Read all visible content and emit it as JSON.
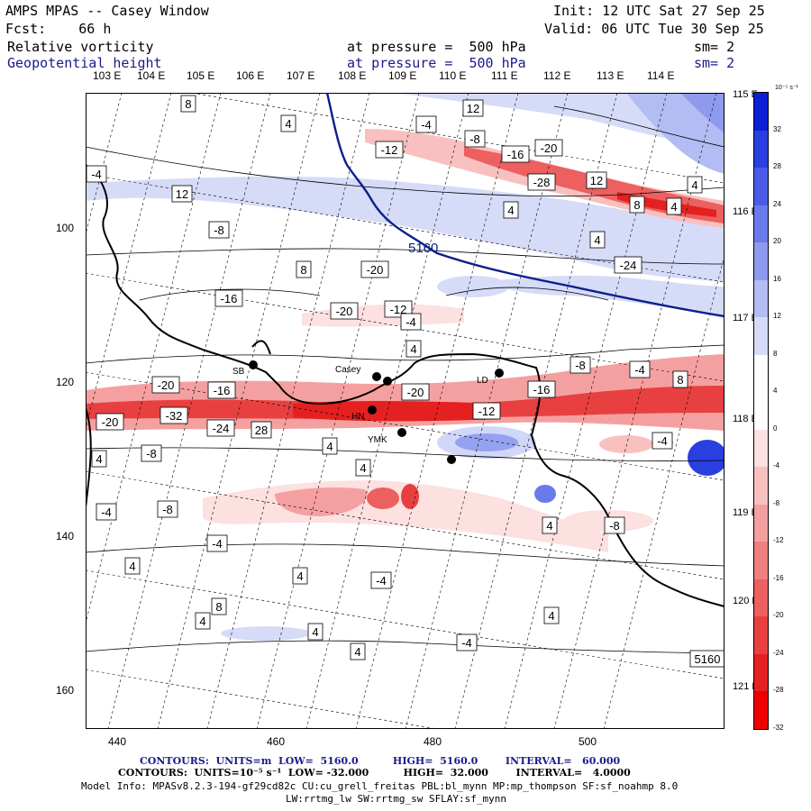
{
  "header": {
    "title": "AMPS MPAS -- Casey Window",
    "forecast": "Fcst:    66 h",
    "init": "Init: 12 UTC Sat 27 Sep 25",
    "valid": "Valid: 06 UTC Tue 30 Sep 25",
    "field1_name": "Relative vorticity",
    "field1_level": "at pressure =  500 hPa",
    "field1_sm": "sm= 2",
    "field2_name": "Geopotential height",
    "field2_level": "at pressure =  500 hPa",
    "field2_sm": "sm= 2"
  },
  "axes": {
    "top_lon": [
      "103 E",
      "104 E",
      "105 E",
      "106 E",
      "107 E",
      "108 E",
      "109 E",
      "110 E",
      "111 E",
      "112 E",
      "113 E",
      "114 E"
    ],
    "right_lon": [
      "115 E",
      "116 E",
      "117 E",
      "118 E",
      "119 E",
      "120 E",
      "121 E"
    ],
    "y_ticks": [
      "100",
      "120",
      "140",
      "160"
    ],
    "x_ticks": [
      "440",
      "460",
      "480",
      "500"
    ]
  },
  "colorbar": {
    "unit_label": "10⁻⁵ s⁻¹",
    "labels": [
      "32",
      "28",
      "24",
      "20",
      "16",
      "12",
      "8",
      "4",
      "0",
      "-4",
      "-8",
      "-12",
      "-16",
      "-20",
      "-24",
      "-28",
      "-32"
    ],
    "colors": [
      "#0a1fd6",
      "#2a3fe0",
      "#4a5ce6",
      "#6b7aea",
      "#8e9aee",
      "#b3bcf3",
      "#d6dbf8",
      "#ffffff",
      "#ffffff",
      "#fde0e0",
      "#f9c0c0",
      "#f5a0a0",
      "#f08080",
      "#ec6060",
      "#e84040",
      "#e42020",
      "#ee0000"
    ]
  },
  "stations": [
    {
      "id": "SB",
      "label": "SB"
    },
    {
      "id": "casey",
      "label": "Casey"
    },
    {
      "id": "LD",
      "label": "LD"
    },
    {
      "id": "HN",
      "label": "HN"
    },
    {
      "id": "YMK",
      "label": "YMK"
    }
  ],
  "contour_labels": [
    "8",
    "4",
    "-4",
    "12",
    "-8",
    "-12",
    "-16",
    "-20",
    "-28",
    "4",
    "8",
    "12",
    "4",
    "4",
    "12",
    "-4",
    "-8",
    "4",
    "8",
    "-20",
    "-24",
    "-16",
    "-12",
    "-20",
    "-16",
    "-20",
    "-32",
    "-24",
    "28",
    "-20",
    "-12",
    "-16",
    "-4",
    "-20",
    "4",
    "-8",
    "-4",
    "8",
    "4",
    "-8",
    "-4",
    "-8",
    "-4",
    "4",
    "4",
    "-4",
    "8",
    "4",
    "4",
    "4",
    "4",
    "-8",
    "-4",
    "4",
    "4",
    "4",
    "-4",
    "5160"
  ],
  "height_contour_label": "5160",
  "footer": {
    "contours1": "CONTOURS:  UNITS=m  LOW=  5160.0          HIGH=  5160.0        INTERVAL=   60.000",
    "contours2": "CONTOURS:  UNITS=10⁻⁵ s⁻¹  LOW= -32.000          HIGH=  32.000        INTERVAL=   4.0000",
    "model1": "Model Info: MPASv8.2.3-194-gf29cd82c CU:cu_grell_freitas PBL:bl_mynn MP:mp_thompson SF:sf_noahmp 8.0",
    "model2": "LW:rrtmg_lw SW:rrtmg_sw SFLAY:sf_mynn"
  }
}
